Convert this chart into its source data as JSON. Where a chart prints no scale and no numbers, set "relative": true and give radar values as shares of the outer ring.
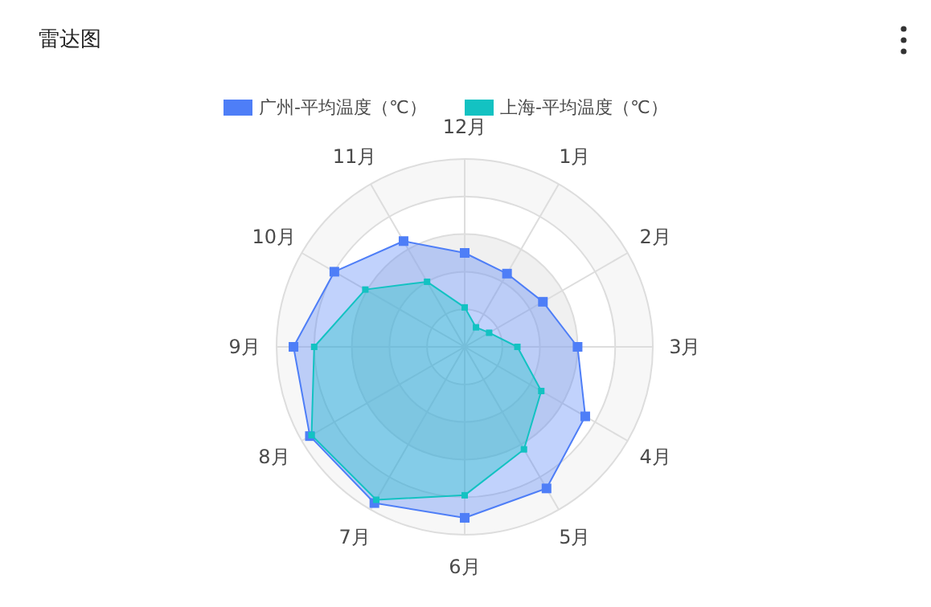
{
  "chart_data": {
    "type": "radar",
    "title": "雷达图",
    "relative": true,
    "legend": "top",
    "categories": [
      "12月",
      "1月",
      "2月",
      "3月",
      "4月",
      "5月",
      "6月",
      "7月",
      "8月",
      "9月",
      "10月",
      "11月"
    ],
    "series": [
      {
        "name": "广州-平均温度（℃）",
        "color": "#4e7ef7",
        "values": [
          0.5,
          0.45,
          0.48,
          0.6,
          0.74,
          0.87,
          0.91,
          0.96,
          0.95,
          0.91,
          0.8,
          0.65
        ]
      },
      {
        "name": "上海-平均温度（℃）",
        "color": "#13c2c2",
        "values": [
          0.21,
          0.12,
          0.15,
          0.28,
          0.47,
          0.63,
          0.79,
          0.94,
          0.94,
          0.8,
          0.61,
          0.4
        ]
      }
    ]
  }
}
